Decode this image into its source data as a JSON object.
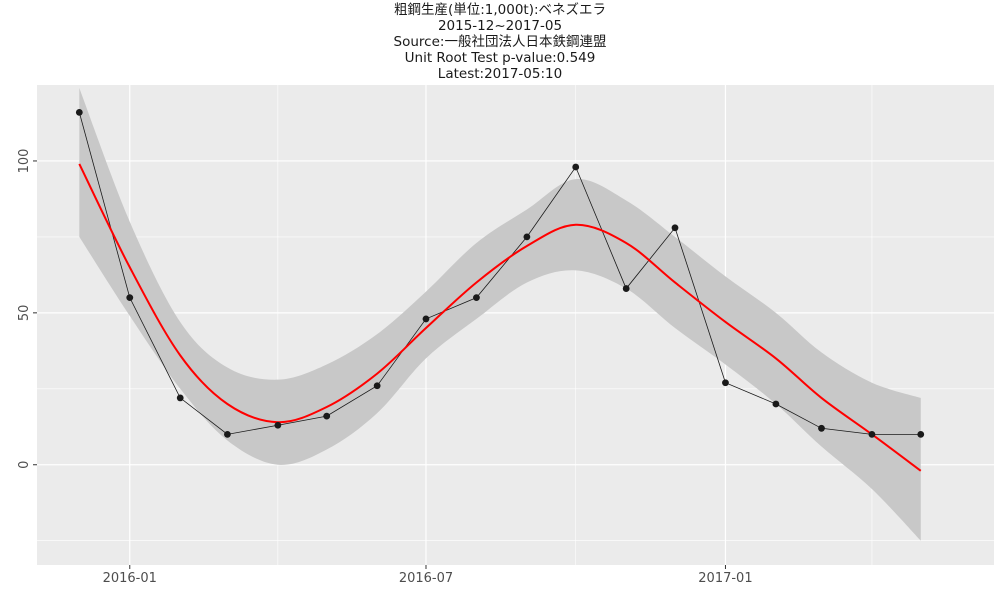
{
  "chart_data": {
    "type": "line",
    "title_lines": [
      "粗鋼生産(単位:1,000t):ベネズエラ",
      "2015-12~2017-05",
      "Source:一般社団法人日本鉄鋼連盟",
      "Unit Root Test p-value:0.549",
      "Latest:2017-05:10"
    ],
    "xlabel": "",
    "ylabel": "",
    "x_ticks": [
      "2016-01",
      "2016-07",
      "2017-01"
    ],
    "y_ticks": [
      0,
      50,
      100
    ],
    "ylim": [
      -33,
      125
    ],
    "xlim": [
      "2015-11-05",
      "2017-06-15"
    ],
    "grid": true,
    "legend": "none",
    "colors": {
      "panel_bg": "#ebebeb",
      "grid": "#ffffff",
      "points": "#1a1a1a",
      "smooth": "#ff0000",
      "ribbon": "#c8c8c8"
    },
    "series": [
      {
        "type": "line+points",
        "x": [
          "2015-12-01",
          "2016-01-01",
          "2016-02-01",
          "2016-03-01",
          "2016-04-01",
          "2016-05-01",
          "2016-06-01",
          "2016-07-01",
          "2016-08-01",
          "2016-09-01",
          "2016-10-01",
          "2016-11-01",
          "2016-12-01",
          "2017-01-01",
          "2017-02-01",
          "2017-03-01",
          "2017-04-01",
          "2017-05-01"
        ],
        "values": [
          116,
          55,
          22,
          10,
          13,
          16,
          26,
          48,
          55,
          75,
          98,
          58,
          78,
          27,
          20,
          12,
          10,
          10
        ]
      },
      {
        "type": "smooth",
        "x": [
          "2015-12-01",
          "2016-01-01",
          "2016-02-01",
          "2016-03-01",
          "2016-04-01",
          "2016-05-01",
          "2016-06-01",
          "2016-07-01",
          "2016-08-01",
          "2016-09-01",
          "2016-10-01",
          "2016-11-01",
          "2016-12-01",
          "2017-01-01",
          "2017-02-01",
          "2017-03-01",
          "2017-04-01",
          "2017-05-01"
        ],
        "values": [
          99,
          65,
          36,
          20,
          14,
          19,
          30,
          45,
          60,
          72,
          79,
          73,
          60,
          47,
          35,
          22,
          10,
          -2
        ],
        "ci_low": [
          75,
          49,
          25,
          8,
          0,
          5,
          17,
          35,
          48,
          60,
          64,
          58,
          45,
          33,
          20,
          6,
          -8,
          -25
        ],
        "ci_high": [
          124,
          80,
          47,
          32,
          28,
          33,
          43,
          57,
          73,
          84,
          94,
          87,
          75,
          62,
          50,
          37,
          27,
          22
        ]
      }
    ]
  }
}
